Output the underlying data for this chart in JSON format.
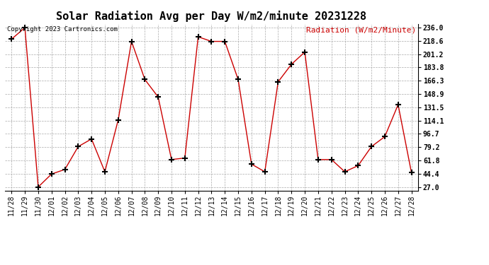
{
  "title": "Solar Radiation Avg per Day W/m2/minute 20231228",
  "copyright_text": "Copyright 2023 Cartronics.com",
  "legend_label": "Radiation (W/m2/Minute)",
  "dates": [
    "11/28",
    "11/29",
    "11/30",
    "12/01",
    "12/02",
    "12/03",
    "12/04",
    "12/05",
    "12/06",
    "12/07",
    "12/08",
    "12/09",
    "12/10",
    "12/11",
    "12/12",
    "12/13",
    "12/14",
    "12/15",
    "12/16",
    "12/17",
    "12/18",
    "12/19",
    "12/20",
    "12/21",
    "12/22",
    "12/23",
    "12/24",
    "12/25",
    "12/26",
    "12/27",
    "12/28"
  ],
  "values": [
    221.0,
    236.0,
    27.0,
    44.0,
    50.0,
    80.0,
    90.0,
    47.0,
    115.0,
    218.0,
    168.0,
    145.0,
    63.0,
    65.0,
    224.0,
    218.0,
    218.0,
    168.0,
    57.0,
    47.0,
    165.0,
    188.0,
    204.0,
    63.0,
    63.0,
    47.0,
    55.0,
    80.0,
    93.0,
    135.0,
    46.0
  ],
  "ylim_min": 22.0,
  "ylim_max": 241.0,
  "yticks": [
    27.0,
    44.4,
    61.8,
    79.2,
    96.7,
    114.1,
    131.5,
    148.9,
    166.3,
    183.8,
    201.2,
    218.6,
    236.0
  ],
  "ytick_labels": [
    "27.0",
    "44.4",
    "61.8",
    "79.2",
    "96.7",
    "114.1",
    "131.5",
    "148.9",
    "166.3",
    "183.8",
    "201.2",
    "218.6",
    "236.0"
  ],
  "line_color": "#cc0000",
  "marker": "+",
  "marker_color": "#000000",
  "marker_size": 6,
  "marker_linewidth": 1.5,
  "background_color": "#ffffff",
  "grid_color": "#aaaaaa",
  "title_fontsize": 11,
  "tick_fontsize": 7,
  "legend_fontsize": 8,
  "copyright_fontsize": 6.5,
  "legend_color": "#cc0000",
  "copyright_color": "#000000",
  "line_width": 1.0
}
